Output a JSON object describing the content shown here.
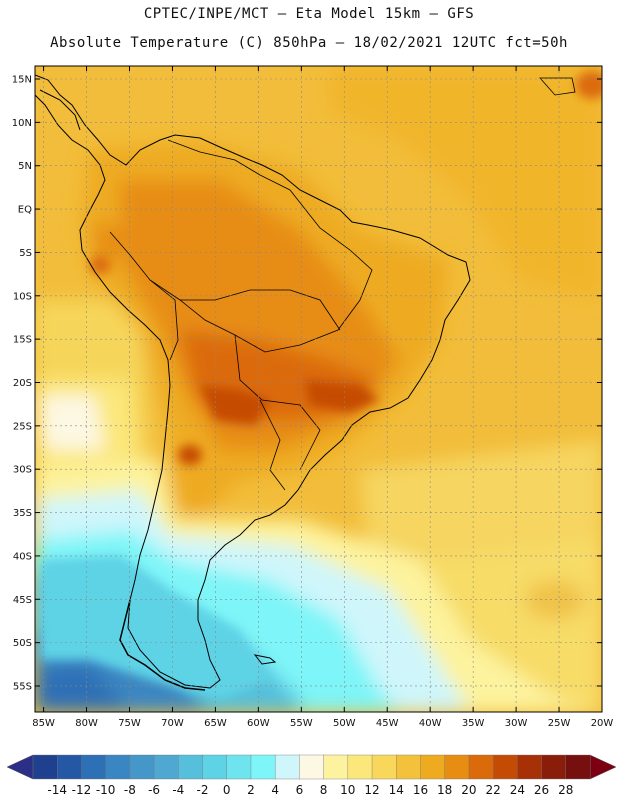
{
  "header": {
    "line1": "CPTEC/INPE/MCT –  Eta Model 15km – GFS",
    "line2": "Absolute Temperature (C) 850hPa – 18/02/2021 12UTC fct=50h"
  },
  "map": {
    "lat_labels": [
      "15N",
      "10N",
      "5N",
      "EQ",
      "5S",
      "10S",
      "15S",
      "20S",
      "25S",
      "30S",
      "35S",
      "40S",
      "45S",
      "50S",
      "55S"
    ],
    "lon_labels": [
      "85W",
      "80W",
      "75W",
      "70W",
      "65W",
      "60W",
      "55W",
      "50W",
      "45W",
      "40W",
      "35W",
      "30W",
      "25W",
      "20W"
    ],
    "lat_range": [
      -58,
      16.5
    ],
    "lon_range": [
      -86,
      -20
    ]
  },
  "colorbar": {
    "labels": [
      "-14",
      "-12",
      "-10",
      "-8",
      "-6",
      "-4",
      "-2",
      "0",
      "2",
      "4",
      "6",
      "8",
      "10",
      "12",
      "14",
      "16",
      "18",
      "20",
      "22",
      "24",
      "26",
      "28"
    ],
    "colors": [
      "#1f3f8f",
      "#2458a5",
      "#2e70b5",
      "#3a86c2",
      "#4597c9",
      "#4fa8d2",
      "#55bfdc",
      "#5fd3e6",
      "#6de4ee",
      "#7ef5f8",
      "#cff6fb",
      "#fdf8e3",
      "#fdf39e",
      "#fbe77a",
      "#f8d75a",
      "#f3c23a",
      "#eeab20",
      "#e78d12",
      "#db6a0a",
      "#c54b05",
      "#a83006",
      "#8a1d0a",
      "#76100e"
    ],
    "under_color": "#2b2f85",
    "over_color": "#7a0012"
  }
}
